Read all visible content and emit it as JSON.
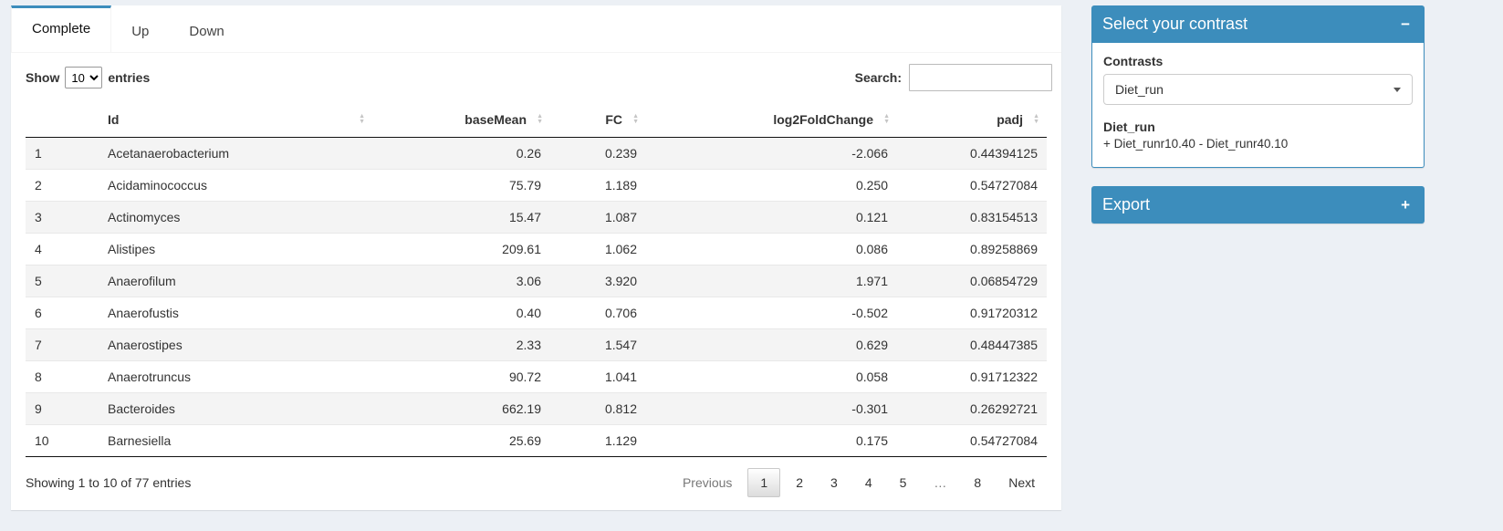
{
  "tabs": [
    {
      "label": "Complete",
      "active": true
    },
    {
      "label": "Up",
      "active": false
    },
    {
      "label": "Down",
      "active": false
    }
  ],
  "table_controls": {
    "show_label": "Show",
    "page_length": "10",
    "entries_label": "entries",
    "search_label": "Search:",
    "search_value": ""
  },
  "table": {
    "columns": [
      "Id",
      "baseMean",
      "FC",
      "log2FoldChange",
      "padj"
    ],
    "rows": [
      {
        "index": "1",
        "id": "Acetanaerobacterium",
        "baseMean": "0.26",
        "fc": "0.239",
        "log2FoldChange": "-2.066",
        "padj": "0.44394125"
      },
      {
        "index": "2",
        "id": "Acidaminococcus",
        "baseMean": "75.79",
        "fc": "1.189",
        "log2FoldChange": "0.250",
        "padj": "0.54727084"
      },
      {
        "index": "3",
        "id": "Actinomyces",
        "baseMean": "15.47",
        "fc": "1.087",
        "log2FoldChange": "0.121",
        "padj": "0.83154513"
      },
      {
        "index": "4",
        "id": "Alistipes",
        "baseMean": "209.61",
        "fc": "1.062",
        "log2FoldChange": "0.086",
        "padj": "0.89258869"
      },
      {
        "index": "5",
        "id": "Anaerofilum",
        "baseMean": "3.06",
        "fc": "3.920",
        "log2FoldChange": "1.971",
        "padj": "0.06854729"
      },
      {
        "index": "6",
        "id": "Anaerofustis",
        "baseMean": "0.40",
        "fc": "0.706",
        "log2FoldChange": "-0.502",
        "padj": "0.91720312"
      },
      {
        "index": "7",
        "id": "Anaerostipes",
        "baseMean": "2.33",
        "fc": "1.547",
        "log2FoldChange": "0.629",
        "padj": "0.48447385"
      },
      {
        "index": "8",
        "id": "Anaerotruncus",
        "baseMean": "90.72",
        "fc": "1.041",
        "log2FoldChange": "0.058",
        "padj": "0.91712322"
      },
      {
        "index": "9",
        "id": "Bacteroides",
        "baseMean": "662.19",
        "fc": "0.812",
        "log2FoldChange": "-0.301",
        "padj": "0.26292721"
      },
      {
        "index": "10",
        "id": "Barnesiella",
        "baseMean": "25.69",
        "fc": "1.129",
        "log2FoldChange": "0.175",
        "padj": "0.54727084"
      }
    ]
  },
  "table_footer": {
    "info": "Showing 1 to 10 of 77 entries",
    "pagination": {
      "items": [
        {
          "label": "Previous",
          "type": "previous",
          "disabled": true
        },
        {
          "label": "1",
          "type": "page",
          "active": true
        },
        {
          "label": "2",
          "type": "page"
        },
        {
          "label": "3",
          "type": "page"
        },
        {
          "label": "4",
          "type": "page"
        },
        {
          "label": "5",
          "type": "page"
        },
        {
          "label": "…",
          "type": "ellipsis",
          "disabled": true
        },
        {
          "label": "8",
          "type": "page"
        },
        {
          "label": "Next",
          "type": "next"
        }
      ]
    }
  },
  "contrast_box": {
    "title": "Select your contrast",
    "collapse_icon": "−",
    "contrasts_label": "Contrasts",
    "selected_value": "Diet_run",
    "contrast_name": "Diet_run",
    "contrast_formula": "+ Diet_runr10.40 - Diet_runr40.10"
  },
  "export_box": {
    "title": "Export",
    "collapse_icon": "+"
  },
  "icons": {
    "sort_asc": "▲",
    "sort_desc": "▼"
  },
  "colors": {
    "primary": "#3c8dbc",
    "page_bg": "#ecf0f5"
  }
}
